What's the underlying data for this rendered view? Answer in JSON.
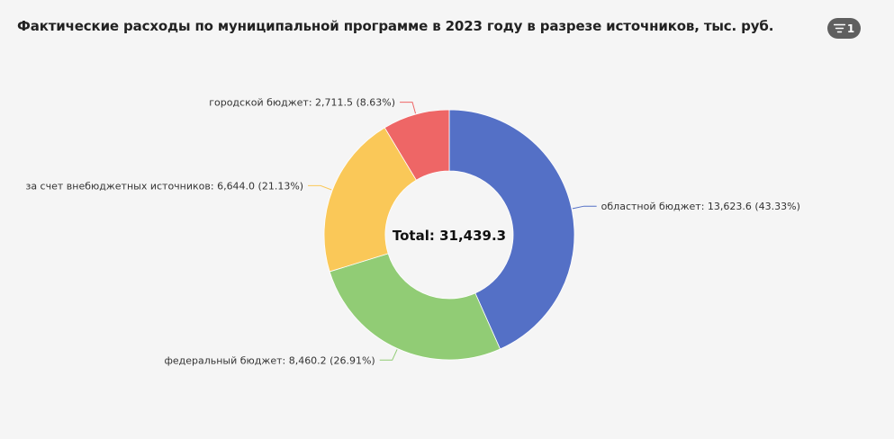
{
  "header": {
    "title": "Фактические расходы по муниципальной программе в 2023 году в разрезе источников, тыс. руб.",
    "filter_count": "1",
    "filter_icon": "filter-icon"
  },
  "chart_data": {
    "type": "pie",
    "donut": true,
    "title": "Фактические расходы по муниципальной программе в 2023 году в разрезе источников, тыс. руб.",
    "center_label": "Total: 31,439.3",
    "total": 31439.3,
    "slices": [
      {
        "name": "областной бюджет",
        "value": 13623.6,
        "percent": 43.33,
        "color": "#5470c6",
        "label": "областной бюджет: 13,623.6 (43.33%)"
      },
      {
        "name": "федеральный бюджет",
        "value": 8460.2,
        "percent": 26.91,
        "color": "#91cc75",
        "label": "федеральный бюджет: 8,460.2 (26.91%)"
      },
      {
        "name": "за счет внебюджетных источников",
        "value": 6644.0,
        "percent": 21.13,
        "color": "#fac858",
        "label": "за счет внебюджетных источников: 6,644.0 (21.13%)"
      },
      {
        "name": "городской бюджет",
        "value": 2711.5,
        "percent": 8.63,
        "color": "#ee6666",
        "label": "городской бюджет: 2,711.5 (8.63%)"
      }
    ]
  }
}
